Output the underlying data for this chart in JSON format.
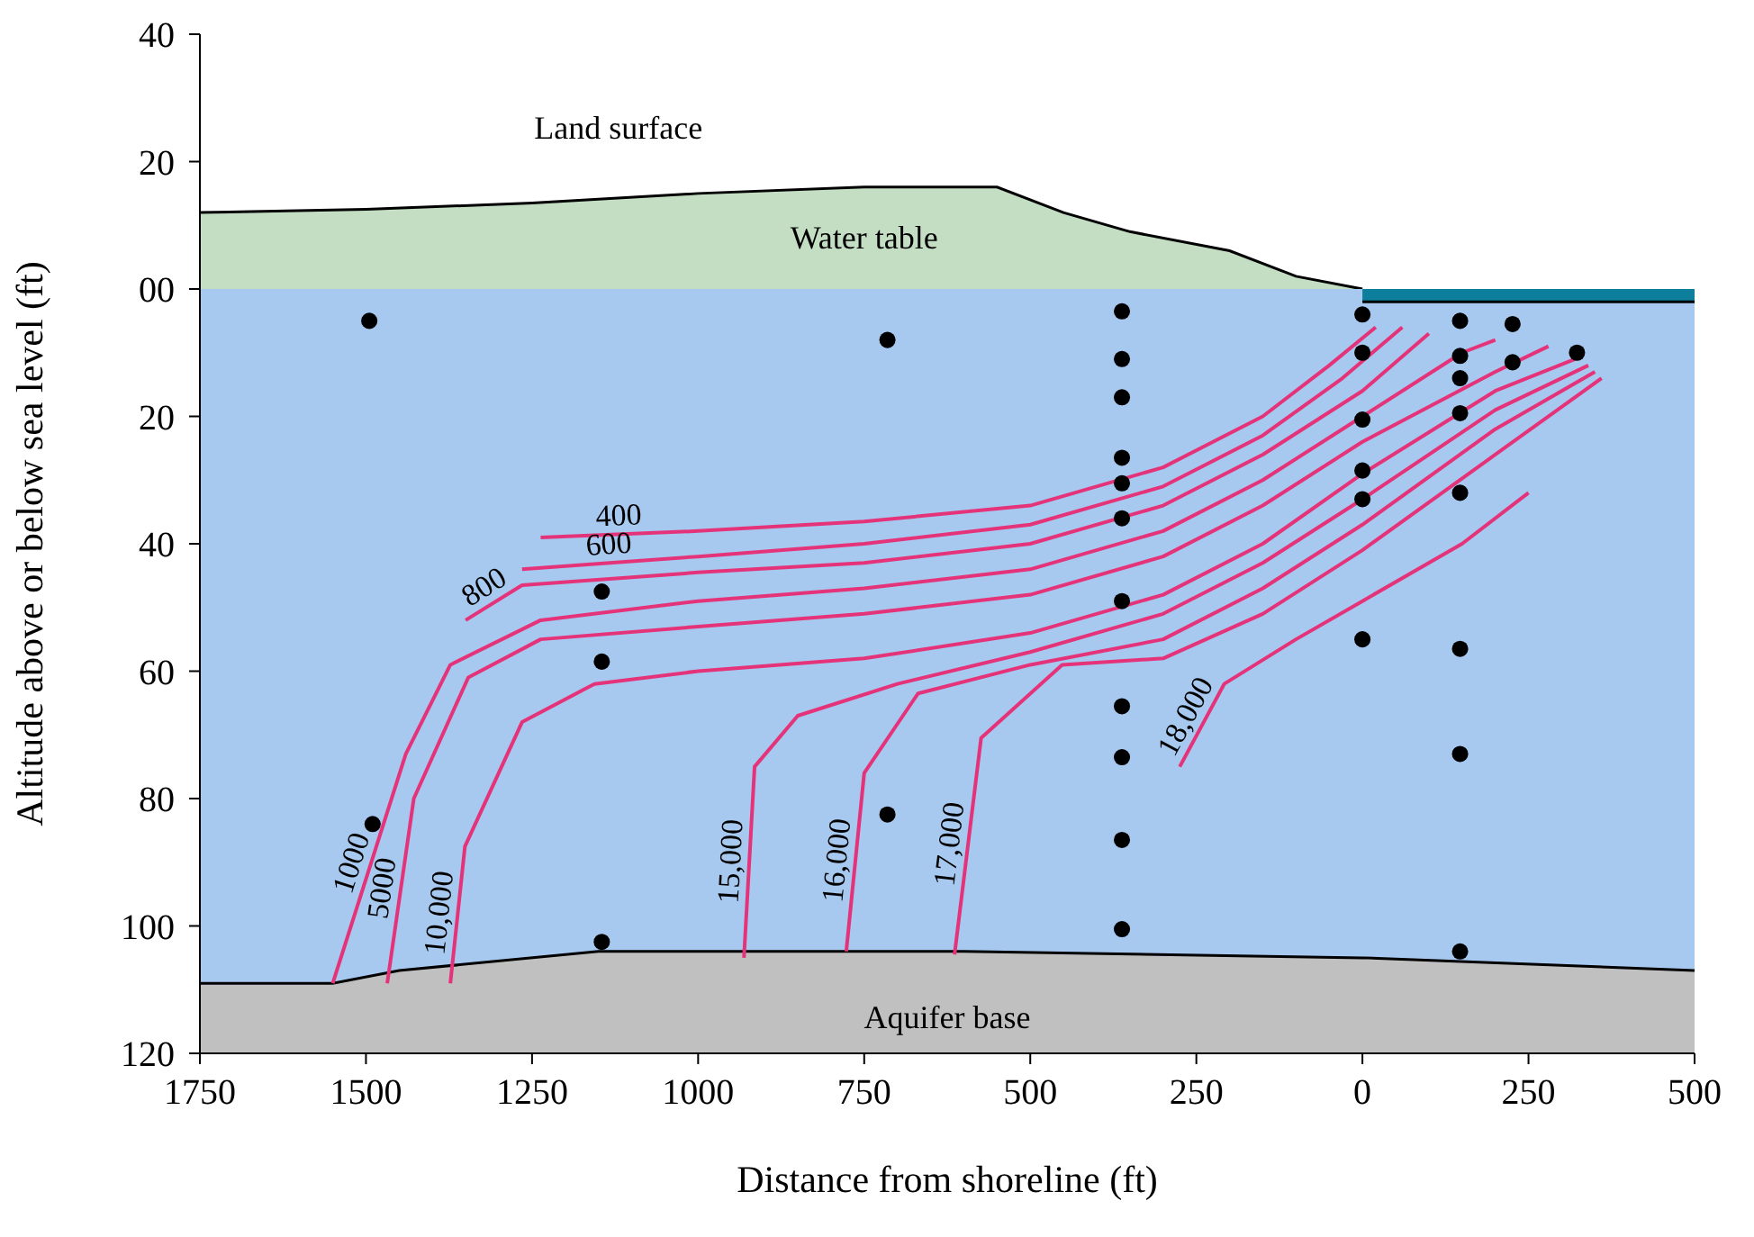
{
  "chart_data": {
    "type": "line",
    "xlabel": "Distance from shoreline (ft)",
    "ylabel": "Altitude above or below sea level (ft)",
    "xlim": [
      -1750,
      500
    ],
    "xticks": [
      {
        "value": -1750,
        "label": "1750"
      },
      {
        "value": -1500,
        "label": "1500"
      },
      {
        "value": -1250,
        "label": "1250"
      },
      {
        "value": -1000,
        "label": "1000"
      },
      {
        "value": -750,
        "label": "750"
      },
      {
        "value": -500,
        "label": "500"
      },
      {
        "value": -250,
        "label": "250"
      },
      0,
      250,
      500
    ],
    "ylim": [
      -120,
      40
    ],
    "yticks": [
      40,
      20,
      {
        "value": 0,
        "label": "00"
      },
      {
        "value": -20,
        "label": "20"
      },
      {
        "value": -40,
        "label": "40"
      },
      {
        "value": -60,
        "label": "60"
      },
      {
        "value": -80,
        "label": "80"
      },
      {
        "value": -100,
        "label": "100"
      },
      {
        "value": -120,
        "label": "120"
      }
    ],
    "bands": [
      {
        "axis": "y",
        "from": -120,
        "to": 0,
        "color": "#c0c0c0",
        "label": "Aquifer base"
      }
    ],
    "annotations": [
      "Land surface"
    ],
    "series": [
      {
        "type": "area",
        "name": "Water table",
        "color": "#c3dec3",
        "x": [
          -1750,
          -1500,
          -1250,
          -1000,
          -750,
          -550,
          -450,
          -350,
          -200,
          -100,
          0
        ],
        "values": [
          12,
          12.5,
          13.5,
          15,
          16,
          16,
          12,
          9,
          6,
          2,
          0
        ]
      },
      {
        "type": "area",
        "color": "#a7c8ef",
        "x": [
          -1750,
          -1550,
          -1450,
          -1150,
          -600,
          0,
          500
        ],
        "values": [
          -109,
          -109,
          -107,
          -104,
          -104,
          -105,
          -107
        ]
      },
      {
        "type": "area",
        "color": "#0d7e9b",
        "x": [
          0,
          500
        ],
        "values": [
          -2,
          -2
        ]
      },
      {
        "name": "400",
        "color": "#e5337a",
        "x": [
          -1237,
          -1000,
          -750,
          -500,
          -300,
          -150,
          -50,
          20
        ],
        "values": [
          -39,
          -38,
          -36.5,
          -34,
          -28,
          -20,
          -12,
          -6
        ]
      },
      {
        "name": "600",
        "color": "#e5337a",
        "x": [
          -1265,
          -1000,
          -750,
          -500,
          -300,
          -150,
          -30,
          60
        ],
        "values": [
          -44,
          -42,
          -40,
          -37,
          -31,
          -23,
          -14,
          -6
        ]
      },
      {
        "name": "800",
        "color": "#e5337a",
        "x": [
          -1350,
          -1265,
          -1000,
          -750,
          -500,
          -300,
          -150,
          0,
          100
        ],
        "values": [
          -52,
          -46.5,
          -44.5,
          -43,
          -40,
          -34,
          -26,
          -16,
          -7
        ]
      },
      {
        "name": "1000",
        "color": "#e5337a",
        "x": [
          -1550,
          -1440,
          -1373,
          -1237,
          -1000,
          -750,
          -500,
          -300,
          -150,
          0,
          150,
          200
        ],
        "values": [
          -109,
          -73,
          -59,
          -52,
          -49,
          -47,
          -44,
          -38,
          -30,
          -20,
          -10,
          -8
        ]
      },
      {
        "name": "5000",
        "color": "#e5337a",
        "x": [
          -1468,
          -1428,
          -1346,
          -1237,
          -1000,
          -750,
          -500,
          -300,
          -150,
          0,
          200,
          280
        ],
        "values": [
          -109,
          -80,
          -61,
          -55,
          -53,
          -51,
          -48,
          -42,
          -34,
          -24,
          -13,
          -9
        ]
      },
      {
        "name": "10,000",
        "color": "#e5337a",
        "x": [
          -1373,
          -1351,
          -1265,
          -1156,
          -1000,
          -750,
          -500,
          -300,
          -150,
          0,
          200,
          320
        ],
        "values": [
          -109,
          -87.5,
          -68,
          -62,
          -60,
          -58,
          -54,
          -48,
          -40,
          -29,
          -16,
          -11
        ]
      },
      {
        "name": "15,000",
        "color": "#e5337a",
        "x": [
          -931,
          -915,
          -850,
          -700,
          -500,
          -300,
          -150,
          0,
          200,
          340
        ],
        "values": [
          -105,
          -75,
          -67,
          -62,
          -57,
          -51,
          -43,
          -33,
          -19,
          -12
        ]
      },
      {
        "name": "16,000",
        "color": "#e5337a",
        "x": [
          -777,
          -750,
          -669,
          -500,
          -300,
          -150,
          0,
          200,
          350
        ],
        "values": [
          -104,
          -76,
          -63.5,
          -59,
          -55,
          -47,
          -37,
          -22,
          -13
        ]
      },
      {
        "name": "17,000",
        "color": "#e5337a",
        "x": [
          -614,
          -574,
          -452,
          -300,
          -150,
          0,
          200,
          360
        ],
        "values": [
          -104.5,
          -70.5,
          -59,
          -58,
          -51,
          -41,
          -26,
          -14
        ]
      },
      {
        "name": "18,000",
        "color": "#e5337a",
        "x": [
          -275,
          -208,
          -100,
          0,
          150,
          250
        ],
        "values": [
          -75,
          -62,
          -55,
          -49,
          -40,
          -32
        ]
      },
      {
        "type": "scatter",
        "color": "#000000",
        "marker": "circle",
        "x": [
          -1495,
          -715,
          -362,
          -362,
          -362,
          -362,
          -362,
          -362,
          -362,
          -362,
          -362,
          -362,
          -362,
          0,
          0,
          0,
          0,
          0,
          0,
          147,
          147,
          147,
          147,
          147,
          147,
          147,
          147,
          226,
          226,
          323,
          -1145,
          -1145,
          -1145,
          -1490,
          -715
        ],
        "values": [
          -5,
          -8,
          -3.5,
          -11,
          -17,
          -26.5,
          -30.5,
          -36,
          -49,
          -65.5,
          -73.5,
          -86.5,
          -100.5,
          -4,
          -10,
          -20.5,
          -28.5,
          -33,
          -55,
          -5,
          -10.5,
          -14,
          -19.5,
          -32,
          -56.5,
          -73,
          -104,
          -5.5,
          -11.5,
          -10,
          -47.5,
          -58.5,
          -102.5,
          -84,
          -82.5
        ]
      }
    ]
  }
}
